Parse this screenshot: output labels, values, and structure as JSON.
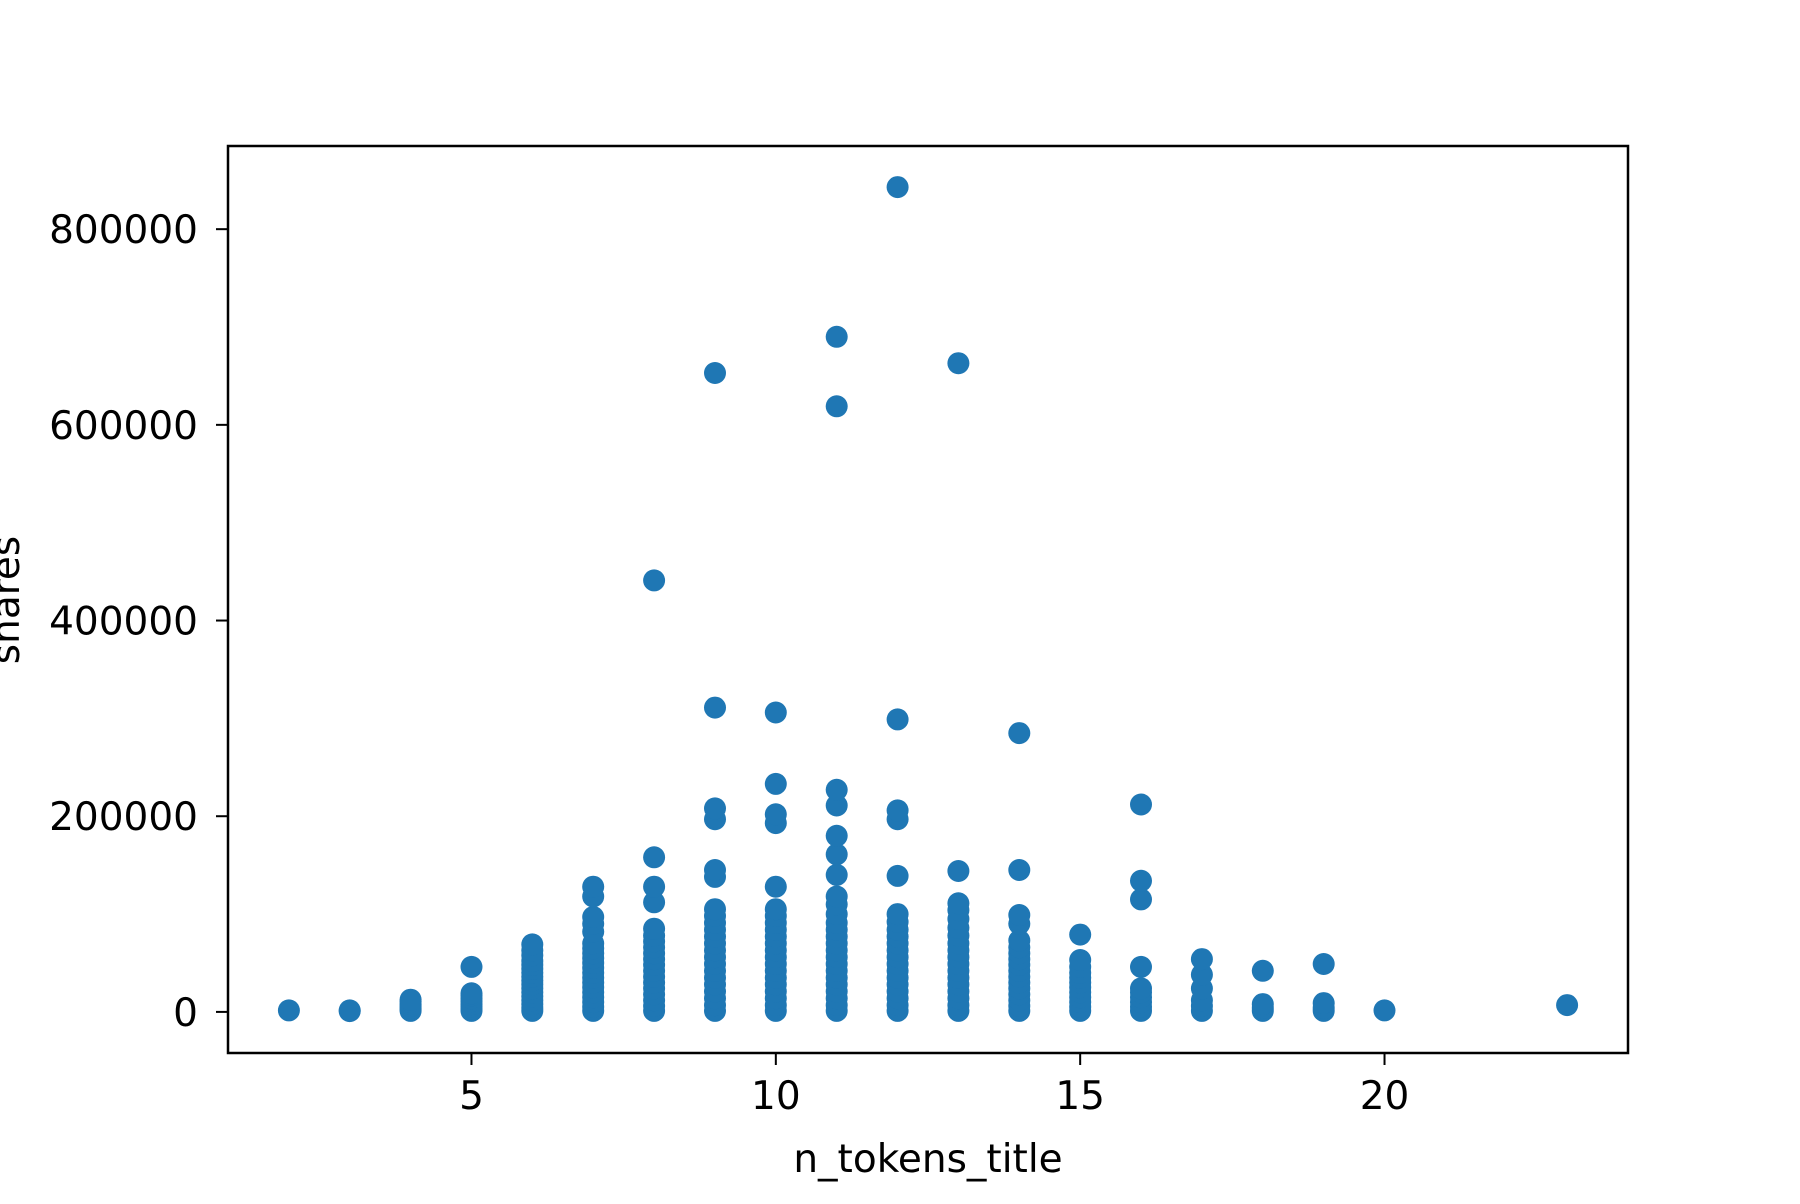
{
  "chart_data": {
    "type": "scatter",
    "title": "",
    "xlabel": "n_tokens_title",
    "ylabel": "shares",
    "xlim": [
      1,
      24
    ],
    "ylim": [
      -42000,
      885000
    ],
    "xticks": [
      5,
      10,
      15,
      20
    ],
    "yticks": [
      0,
      200000,
      400000,
      600000,
      800000
    ],
    "xtick_labels": [
      "5",
      "10",
      "15",
      "20"
    ],
    "ytick_labels": [
      "0",
      "200000",
      "400000",
      "600000",
      "800000"
    ],
    "grid": false,
    "legend": "none",
    "marker_color": "#1f77b4",
    "series": [
      {
        "points": [
          [
            2,
            1500
          ],
          [
            3,
            800
          ],
          [
            3,
            1500
          ],
          [
            4,
            1000
          ],
          [
            4,
            2500
          ],
          [
            4,
            4000
          ],
          [
            4,
            6000
          ],
          [
            4,
            8000
          ],
          [
            4,
            10500
          ],
          [
            4,
            12500
          ],
          [
            5,
            1000
          ],
          [
            5,
            3000
          ],
          [
            5,
            5500
          ],
          [
            5,
            8000
          ],
          [
            5,
            11000
          ],
          [
            5,
            14000
          ],
          [
            5,
            17000
          ],
          [
            5,
            19000
          ],
          [
            5,
            46000
          ],
          [
            6,
            1000
          ],
          [
            6,
            4000
          ],
          [
            6,
            8000
          ],
          [
            6,
            12000
          ],
          [
            6,
            16000
          ],
          [
            6,
            20000
          ],
          [
            6,
            24000
          ],
          [
            6,
            28000
          ],
          [
            6,
            32000
          ],
          [
            6,
            36000
          ],
          [
            6,
            40000
          ],
          [
            6,
            44000
          ],
          [
            6,
            48000
          ],
          [
            6,
            52000
          ],
          [
            6,
            58000
          ],
          [
            6,
            63000
          ],
          [
            6,
            69000
          ],
          [
            7,
            1000
          ],
          [
            7,
            5000
          ],
          [
            7,
            10000
          ],
          [
            7,
            15000
          ],
          [
            7,
            20000
          ],
          [
            7,
            25000
          ],
          [
            7,
            30000
          ],
          [
            7,
            35000
          ],
          [
            7,
            40000
          ],
          [
            7,
            45000
          ],
          [
            7,
            50000
          ],
          [
            7,
            55000
          ],
          [
            7,
            60000
          ],
          [
            7,
            65000
          ],
          [
            7,
            70000
          ],
          [
            7,
            82000
          ],
          [
            7,
            90000
          ],
          [
            7,
            97000
          ],
          [
            7,
            118000
          ],
          [
            7,
            128000
          ],
          [
            8,
            1000
          ],
          [
            8,
            6000
          ],
          [
            8,
            12000
          ],
          [
            8,
            18000
          ],
          [
            8,
            24000
          ],
          [
            8,
            30000
          ],
          [
            8,
            36000
          ],
          [
            8,
            42000
          ],
          [
            8,
            48000
          ],
          [
            8,
            54000
          ],
          [
            8,
            60000
          ],
          [
            8,
            66000
          ],
          [
            8,
            72000
          ],
          [
            8,
            78000
          ],
          [
            8,
            85000
          ],
          [
            8,
            112000
          ],
          [
            8,
            128000
          ],
          [
            8,
            158000
          ],
          [
            8,
            441000
          ],
          [
            9,
            1000
          ],
          [
            9,
            7000
          ],
          [
            9,
            14000
          ],
          [
            9,
            21000
          ],
          [
            9,
            28000
          ],
          [
            9,
            35000
          ],
          [
            9,
            42000
          ],
          [
            9,
            49000
          ],
          [
            9,
            56000
          ],
          [
            9,
            63000
          ],
          [
            9,
            70000
          ],
          [
            9,
            77000
          ],
          [
            9,
            84000
          ],
          [
            9,
            91000
          ],
          [
            9,
            98000
          ],
          [
            9,
            105000
          ],
          [
            9,
            138000
          ],
          [
            9,
            145000
          ],
          [
            9,
            197000
          ],
          [
            9,
            208000
          ],
          [
            9,
            311000
          ],
          [
            9,
            653000
          ],
          [
            10,
            1000
          ],
          [
            10,
            7000
          ],
          [
            10,
            14000
          ],
          [
            10,
            21000
          ],
          [
            10,
            28000
          ],
          [
            10,
            35000
          ],
          [
            10,
            42000
          ],
          [
            10,
            49000
          ],
          [
            10,
            56000
          ],
          [
            10,
            63000
          ],
          [
            10,
            70000
          ],
          [
            10,
            77000
          ],
          [
            10,
            84000
          ],
          [
            10,
            91000
          ],
          [
            10,
            98000
          ],
          [
            10,
            105000
          ],
          [
            10,
            128000
          ],
          [
            10,
            193000
          ],
          [
            10,
            202000
          ],
          [
            10,
            233000
          ],
          [
            10,
            306000
          ],
          [
            11,
            1000
          ],
          [
            11,
            7000
          ],
          [
            11,
            14000
          ],
          [
            11,
            21000
          ],
          [
            11,
            28000
          ],
          [
            11,
            35000
          ],
          [
            11,
            42000
          ],
          [
            11,
            49000
          ],
          [
            11,
            56000
          ],
          [
            11,
            63000
          ],
          [
            11,
            70000
          ],
          [
            11,
            77000
          ],
          [
            11,
            84000
          ],
          [
            11,
            91000
          ],
          [
            11,
            100000
          ],
          [
            11,
            110000
          ],
          [
            11,
            118000
          ],
          [
            11,
            140000
          ],
          [
            11,
            161000
          ],
          [
            11,
            180000
          ],
          [
            11,
            211000
          ],
          [
            11,
            227000
          ],
          [
            11,
            619000
          ],
          [
            11,
            690000
          ],
          [
            12,
            1000
          ],
          [
            12,
            7000
          ],
          [
            12,
            14000
          ],
          [
            12,
            21000
          ],
          [
            12,
            28000
          ],
          [
            12,
            35000
          ],
          [
            12,
            42000
          ],
          [
            12,
            49000
          ],
          [
            12,
            56000
          ],
          [
            12,
            63000
          ],
          [
            12,
            70000
          ],
          [
            12,
            77000
          ],
          [
            12,
            84000
          ],
          [
            12,
            92000
          ],
          [
            12,
            100000
          ],
          [
            12,
            139000
          ],
          [
            12,
            197000
          ],
          [
            12,
            206000
          ],
          [
            12,
            299000
          ],
          [
            12,
            843000
          ],
          [
            13,
            1000
          ],
          [
            13,
            7000
          ],
          [
            13,
            14000
          ],
          [
            13,
            21000
          ],
          [
            13,
            28000
          ],
          [
            13,
            35000
          ],
          [
            13,
            42000
          ],
          [
            13,
            49000
          ],
          [
            13,
            56000
          ],
          [
            13,
            63000
          ],
          [
            13,
            70000
          ],
          [
            13,
            78000
          ],
          [
            13,
            86000
          ],
          [
            13,
            95000
          ],
          [
            13,
            104000
          ],
          [
            13,
            111000
          ],
          [
            13,
            144000
          ],
          [
            13,
            663000
          ],
          [
            14,
            1000
          ],
          [
            14,
            6000
          ],
          [
            14,
            12000
          ],
          [
            14,
            18000
          ],
          [
            14,
            24000
          ],
          [
            14,
            30000
          ],
          [
            14,
            36000
          ],
          [
            14,
            42000
          ],
          [
            14,
            48000
          ],
          [
            14,
            54000
          ],
          [
            14,
            60000
          ],
          [
            14,
            66000
          ],
          [
            14,
            73000
          ],
          [
            14,
            90000
          ],
          [
            14,
            99000
          ],
          [
            14,
            145000
          ],
          [
            14,
            285000
          ],
          [
            15,
            1000
          ],
          [
            15,
            5000
          ],
          [
            15,
            10000
          ],
          [
            15,
            15000
          ],
          [
            15,
            20000
          ],
          [
            15,
            25000
          ],
          [
            15,
            30000
          ],
          [
            15,
            35000
          ],
          [
            15,
            40000
          ],
          [
            15,
            46000
          ],
          [
            15,
            53000
          ],
          [
            15,
            79000
          ],
          [
            16,
            1000
          ],
          [
            16,
            5000
          ],
          [
            16,
            10000
          ],
          [
            16,
            15000
          ],
          [
            16,
            20000
          ],
          [
            16,
            24000
          ],
          [
            16,
            46000
          ],
          [
            16,
            115000
          ],
          [
            16,
            134000
          ],
          [
            16,
            212000
          ],
          [
            17,
            1000
          ],
          [
            17,
            6000
          ],
          [
            17,
            12000
          ],
          [
            17,
            24000
          ],
          [
            17,
            38000
          ],
          [
            17,
            54000
          ],
          [
            18,
            1000
          ],
          [
            18,
            4000
          ],
          [
            18,
            8000
          ],
          [
            18,
            42000
          ],
          [
            19,
            1000
          ],
          [
            19,
            4000
          ],
          [
            19,
            9000
          ],
          [
            19,
            49000
          ],
          [
            20,
            1500
          ],
          [
            23,
            7000
          ]
        ]
      }
    ]
  }
}
